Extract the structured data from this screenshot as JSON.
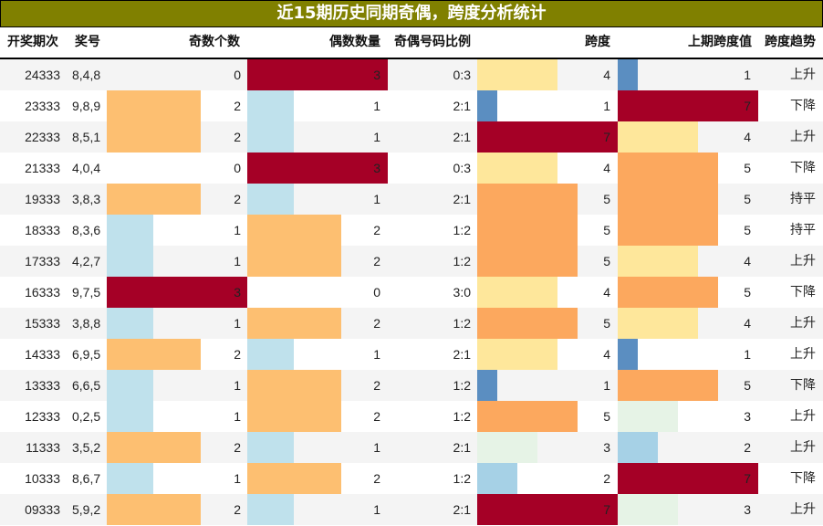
{
  "title": "近15期历史同期奇偶，跨度分析统计",
  "header": {
    "period": "开奖期次",
    "numbers": "奖号",
    "odd_count": "奇数个数",
    "even_count": "偶数数量",
    "ratio": "奇偶号码比例",
    "span": "跨度",
    "prev_span": "上期跨度值",
    "trend": "跨度趋势"
  },
  "colors": {
    "title_bg": "#808000",
    "count": {
      "0": "",
      "1": "#bfe1ec",
      "2": "#fdbf71",
      "3": "#a50026"
    },
    "span": {
      "1": "#5b8ec1",
      "2": "#a6d1e6",
      "3": "#e6f3e6",
      "4": "#fee79b",
      "5": "#fca85e",
      "7": "#a50026"
    }
  },
  "rows": [
    {
      "period": "24333",
      "numbers": "8,4,8",
      "odd": "0",
      "even": "3",
      "ratio": "0:3",
      "span": "4",
      "prev_span": "1",
      "trend": "上升"
    },
    {
      "period": "23333",
      "numbers": "9,8,9",
      "odd": "2",
      "even": "1",
      "ratio": "2:1",
      "span": "1",
      "prev_span": "7",
      "trend": "下降"
    },
    {
      "period": "22333",
      "numbers": "8,5,1",
      "odd": "2",
      "even": "1",
      "ratio": "2:1",
      "span": "7",
      "prev_span": "4",
      "trend": "上升"
    },
    {
      "period": "21333",
      "numbers": "4,0,4",
      "odd": "0",
      "even": "3",
      "ratio": "0:3",
      "span": "4",
      "prev_span": "5",
      "trend": "下降"
    },
    {
      "period": "19333",
      "numbers": "3,8,3",
      "odd": "2",
      "even": "1",
      "ratio": "2:1",
      "span": "5",
      "prev_span": "5",
      "trend": "持平"
    },
    {
      "period": "18333",
      "numbers": "8,3,6",
      "odd": "1",
      "even": "2",
      "ratio": "1:2",
      "span": "5",
      "prev_span": "5",
      "trend": "持平"
    },
    {
      "period": "17333",
      "numbers": "4,2,7",
      "odd": "1",
      "even": "2",
      "ratio": "1:2",
      "span": "5",
      "prev_span": "4",
      "trend": "上升"
    },
    {
      "period": "16333",
      "numbers": "9,7,5",
      "odd": "3",
      "even": "0",
      "ratio": "3:0",
      "span": "4",
      "prev_span": "5",
      "trend": "下降"
    },
    {
      "period": "15333",
      "numbers": "3,8,8",
      "odd": "1",
      "even": "2",
      "ratio": "1:2",
      "span": "5",
      "prev_span": "4",
      "trend": "上升"
    },
    {
      "period": "14333",
      "numbers": "6,9,5",
      "odd": "2",
      "even": "1",
      "ratio": "2:1",
      "span": "4",
      "prev_span": "1",
      "trend": "上升"
    },
    {
      "period": "13333",
      "numbers": "6,6,5",
      "odd": "1",
      "even": "2",
      "ratio": "1:2",
      "span": "1",
      "prev_span": "5",
      "trend": "下降"
    },
    {
      "period": "12333",
      "numbers": "0,2,5",
      "odd": "1",
      "even": "2",
      "ratio": "1:2",
      "span": "5",
      "prev_span": "3",
      "trend": "上升"
    },
    {
      "period": "11333",
      "numbers": "3,5,2",
      "odd": "2",
      "even": "1",
      "ratio": "2:1",
      "span": "3",
      "prev_span": "2",
      "trend": "上升"
    },
    {
      "period": "10333",
      "numbers": "8,6,7",
      "odd": "1",
      "even": "2",
      "ratio": "1:2",
      "span": "2",
      "prev_span": "7",
      "trend": "下降"
    },
    {
      "period": "09333",
      "numbers": "5,9,2",
      "odd": "2",
      "even": "1",
      "ratio": "2:1",
      "span": "7",
      "prev_span": "3",
      "trend": "上升"
    }
  ]
}
